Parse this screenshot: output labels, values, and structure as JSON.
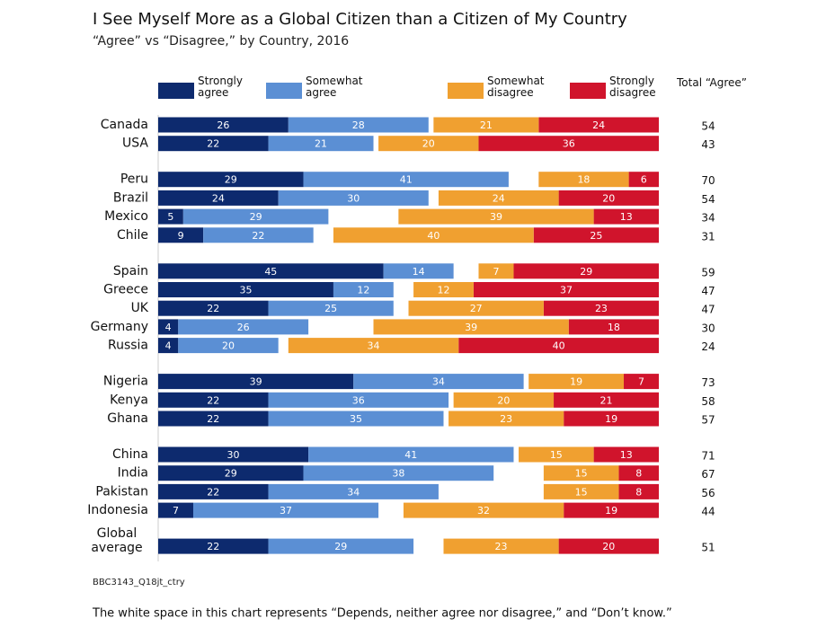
{
  "chart_data": {
    "type": "bar",
    "title": "I See Myself More as a Global Citizen than a Citizen of My Country",
    "subtitle": "“Agree” vs “Disagree,” by Country, 2016",
    "total_label": "Total “Agree”",
    "categories": [
      "Canada",
      "USA",
      "Peru",
      "Brazil",
      "Mexico",
      "Chile",
      "Spain",
      "Greece",
      "UK",
      "Germany",
      "Russia",
      "Nigeria",
      "Kenya",
      "Ghana",
      "China",
      "India",
      "Pakistan",
      "Indonesia",
      "Global average"
    ],
    "series": [
      {
        "name": "Strongly agree",
        "color": "#0d2a6e",
        "values": [
          26,
          22,
          29,
          24,
          5,
          9,
          45,
          35,
          22,
          4,
          4,
          39,
          22,
          22,
          30,
          29,
          22,
          7,
          22
        ]
      },
      {
        "name": "Somewhat agree",
        "color": "#5b8fd4",
        "values": [
          28,
          21,
          41,
          30,
          29,
          22,
          14,
          12,
          25,
          26,
          20,
          34,
          36,
          35,
          41,
          38,
          34,
          37,
          29
        ]
      },
      {
        "name": "Somewhat disagree",
        "color": "#f0a030",
        "values": [
          21,
          20,
          18,
          24,
          39,
          40,
          7,
          12,
          27,
          39,
          34,
          19,
          20,
          23,
          15,
          15,
          15,
          32,
          23
        ]
      },
      {
        "name": "Strongly disagree",
        "color": "#d0142c",
        "values": [
          24,
          36,
          6,
          20,
          13,
          25,
          29,
          37,
          23,
          18,
          40,
          7,
          21,
          19,
          13,
          8,
          8,
          19,
          20
        ]
      }
    ],
    "totals": [
      54,
      43,
      70,
      54,
      34,
      31,
      59,
      47,
      47,
      30,
      24,
      73,
      58,
      57,
      71,
      67,
      56,
      44,
      51
    ],
    "xlim": [
      0,
      100
    ],
    "source": "BBC3143_Q18jt_ctry",
    "note": "The white space in this chart represents “Depends, neither agree nor disagree,” and “Don’t know.”"
  }
}
